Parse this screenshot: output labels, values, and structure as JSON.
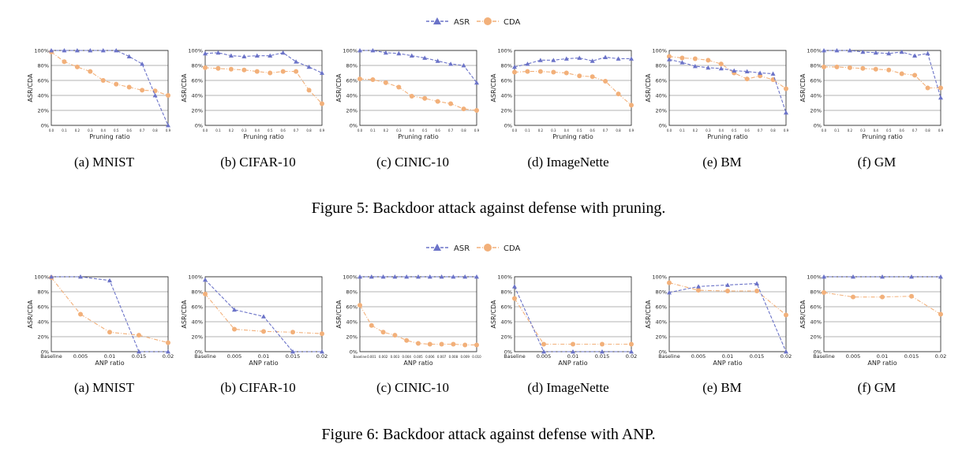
{
  "colors": {
    "asr": "#6b73c8",
    "cda": "#f2b07a",
    "grid": "#9a9a9a"
  },
  "legend": {
    "asr": "ASR",
    "cda": "CDA"
  },
  "figure5": {
    "caption": "Figure 5: Backdoor attack against defense with pruning.",
    "subcaptions": [
      "(a)  MNIST",
      "(b)  CIFAR-10",
      "(c)  CINIC-10",
      "(d)  ImageNette",
      "(e)  BM",
      "(f)  GM"
    ]
  },
  "figure6": {
    "caption": "Figure 6: Backdoor attack against defense with ANP.",
    "subcaptions": [
      "(a)  MNIST",
      "(b)  CIFAR-10",
      "(c)  CINIC-10",
      "(d)  ImageNette",
      "(e)  BM",
      "(f)  GM"
    ]
  },
  "chart_data": [
    {
      "type": "line",
      "panel": "(a) MNIST",
      "xlabel": "Pruning ratio",
      "ylabel": "ASR/CDA",
      "ylim": [
        0,
        100
      ],
      "yticks": [
        "0%",
        "20%",
        "40%",
        "60%",
        "80%",
        "100%"
      ],
      "x": [
        "0.0",
        "0.1",
        "0.2",
        "0.3",
        "0.4",
        "0.5",
        "0.6",
        "0.7",
        "0.8",
        "0.9"
      ],
      "series": [
        {
          "name": "ASR",
          "values": [
            100,
            100,
            100,
            100,
            100,
            100,
            92,
            82,
            40,
            0
          ]
        },
        {
          "name": "CDA",
          "values": [
            98,
            85,
            78,
            72,
            60,
            55,
            51,
            47,
            46,
            40
          ]
        }
      ]
    },
    {
      "type": "line",
      "panel": "(b) CIFAR-10",
      "xlabel": "Pruning ratio",
      "ylabel": "ASR/CDA",
      "ylim": [
        0,
        100
      ],
      "yticks": [
        "0%",
        "20%",
        "40%",
        "60%",
        "80%",
        "100%"
      ],
      "x": [
        "0.0",
        "0.1",
        "0.2",
        "0.3",
        "0.4",
        "0.5",
        "0.6",
        "0.7",
        "0.8",
        "0.9"
      ],
      "series": [
        {
          "name": "ASR",
          "values": [
            96,
            97,
            93,
            92,
            93,
            93,
            97,
            85,
            78,
            70
          ]
        },
        {
          "name": "CDA",
          "values": [
            77,
            76,
            75,
            74,
            72,
            70,
            72,
            72,
            47,
            29
          ]
        }
      ]
    },
    {
      "type": "line",
      "panel": "(c) CINIC-10",
      "xlabel": "Pruning ratio",
      "ylabel": "ASR/CDA",
      "ylim": [
        0,
        100
      ],
      "yticks": [
        "0%",
        "20%",
        "40%",
        "60%",
        "80%",
        "100%"
      ],
      "x": [
        "0.0",
        "0.1",
        "0.2",
        "0.3",
        "0.4",
        "0.5",
        "0.6",
        "0.7",
        "0.8",
        "0.9"
      ],
      "series": [
        {
          "name": "ASR",
          "values": [
            100,
            100,
            97,
            96,
            93,
            90,
            86,
            82,
            80,
            57
          ]
        },
        {
          "name": "CDA",
          "values": [
            62,
            61,
            57,
            51,
            39,
            36,
            32,
            29,
            22,
            20
          ]
        }
      ]
    },
    {
      "type": "line",
      "panel": "(d) ImageNette",
      "xlabel": "Pruning ratio",
      "ylabel": "ASR/CDA",
      "ylim": [
        0,
        100
      ],
      "yticks": [
        "0%",
        "20%",
        "40%",
        "60%",
        "80%",
        "100%"
      ],
      "x": [
        "0.0",
        "0.1",
        "0.2",
        "0.3",
        "0.4",
        "0.5",
        "0.6",
        "0.7",
        "0.8",
        "0.9"
      ],
      "series": [
        {
          "name": "ASR",
          "values": [
            78,
            82,
            87,
            87,
            89,
            90,
            86,
            91,
            89,
            89
          ]
        },
        {
          "name": "CDA",
          "values": [
            71,
            72,
            72,
            71,
            70,
            66,
            65,
            59,
            42,
            27
          ]
        }
      ]
    },
    {
      "type": "line",
      "panel": "(e) BM",
      "xlabel": "Pruning ratio",
      "ylabel": "ASR/CDA",
      "ylim": [
        0,
        100
      ],
      "yticks": [
        "0%",
        "20%",
        "40%",
        "60%",
        "80%",
        "100%"
      ],
      "x": [
        "0.0",
        "0.1",
        "0.2",
        "0.3",
        "0.4",
        "0.5",
        "0.6",
        "0.7",
        "0.8",
        "0.9"
      ],
      "series": [
        {
          "name": "ASR",
          "values": [
            88,
            84,
            79,
            77,
            76,
            73,
            72,
            70,
            69,
            17
          ]
        },
        {
          "name": "CDA",
          "values": [
            92,
            90,
            89,
            87,
            82,
            70,
            62,
            66,
            61,
            49
          ]
        }
      ]
    },
    {
      "type": "line",
      "panel": "(f) GM",
      "xlabel": "Pruning ratio",
      "ylabel": "ASR/CDA",
      "ylim": [
        0,
        100
      ],
      "yticks": [
        "0%",
        "20%",
        "40%",
        "60%",
        "80%",
        "100%"
      ],
      "x": [
        "0.0",
        "0.1",
        "0.2",
        "0.3",
        "0.4",
        "0.5",
        "0.6",
        "0.7",
        "0.8",
        "0.9"
      ],
      "series": [
        {
          "name": "ASR",
          "values": [
            100,
            100,
            100,
            98,
            97,
            96,
            98,
            93,
            96,
            37
          ]
        },
        {
          "name": "CDA",
          "values": [
            78,
            78,
            77,
            76,
            75,
            74,
            69,
            67,
            50,
            50
          ]
        }
      ]
    },
    {
      "type": "line",
      "panel": "(a) MNIST",
      "xlabel": "ANP ratio",
      "ylabel": "ASR/CDA",
      "ylim": [
        0,
        100
      ],
      "yticks": [
        "0%",
        "20%",
        "40%",
        "60%",
        "80%",
        "100%"
      ],
      "x": [
        "Baseline",
        "0.005",
        "0.01",
        "0.015",
        "0.02"
      ],
      "series": [
        {
          "name": "ASR",
          "values": [
            100,
            100,
            95,
            0,
            0
          ]
        },
        {
          "name": "CDA",
          "values": [
            99,
            50,
            26,
            22,
            12
          ]
        }
      ]
    },
    {
      "type": "line",
      "panel": "(b) CIFAR-10",
      "xlabel": "ANP ratio",
      "ylabel": "ASR/CDA",
      "ylim": [
        0,
        100
      ],
      "yticks": [
        "0%",
        "20%",
        "40%",
        "60%",
        "80%",
        "100%"
      ],
      "x": [
        "Baseline",
        "0.005",
        "0.01",
        "0.015",
        "0.02"
      ],
      "series": [
        {
          "name": "ASR",
          "values": [
            96,
            56,
            47,
            0,
            0
          ]
        },
        {
          "name": "CDA",
          "values": [
            77,
            30,
            27,
            26,
            24
          ]
        }
      ]
    },
    {
      "type": "line",
      "panel": "(c) CINIC-10",
      "xlabel": "ANP ratio",
      "ylabel": "ASR/CDA",
      "ylim": [
        0,
        100
      ],
      "yticks": [
        "0%",
        "20%",
        "40%",
        "60%",
        "80%",
        "100%"
      ],
      "x": [
        "Baseline",
        "0.001",
        "0.002",
        "0.003",
        "0.004",
        "0.005",
        "0.006",
        "0.007",
        "0.008",
        "0.009",
        "0.010"
      ],
      "series": [
        {
          "name": "ASR",
          "values": [
            100,
            100,
            100,
            100,
            100,
            100,
            100,
            100,
            100,
            100,
            100
          ]
        },
        {
          "name": "CDA",
          "values": [
            62,
            35,
            26,
            22,
            15,
            11,
            10,
            10,
            10,
            9,
            9
          ]
        }
      ]
    },
    {
      "type": "line",
      "panel": "(d) ImageNette",
      "xlabel": "ANP ratio",
      "ylabel": "ASR/CDA",
      "ylim": [
        0,
        100
      ],
      "yticks": [
        "0%",
        "20%",
        "40%",
        "60%",
        "80%",
        "100%"
      ],
      "x": [
        "Baseline",
        "0.005",
        "0.01",
        "0.015",
        "0.02"
      ],
      "series": [
        {
          "name": "ASR",
          "values": [
            87,
            0,
            0,
            0,
            0
          ]
        },
        {
          "name": "CDA",
          "values": [
            71,
            10,
            10,
            10,
            10
          ]
        }
      ]
    },
    {
      "type": "line",
      "panel": "(e) BM",
      "xlabel": "ANP ratio",
      "ylabel": "ASR/CDA",
      "ylim": [
        0,
        100
      ],
      "yticks": [
        "0%",
        "20%",
        "40%",
        "60%",
        "80%",
        "100%"
      ],
      "x": [
        "Baseline",
        "0.005",
        "0.01",
        "0.015",
        "0.02"
      ],
      "series": [
        {
          "name": "ASR",
          "values": [
            79,
            87,
            89,
            91,
            0
          ]
        },
        {
          "name": "CDA",
          "values": [
            92,
            82,
            81,
            81,
            49
          ]
        }
      ]
    },
    {
      "type": "line",
      "panel": "(f) GM",
      "xlabel": "ANP ratio",
      "ylabel": "ASR/CDA",
      "ylim": [
        0,
        100
      ],
      "yticks": [
        "0%",
        "20%",
        "40%",
        "60%",
        "80%",
        "100%"
      ],
      "x": [
        "Baseline",
        "0.005",
        "0.01",
        "0.015",
        "0.02"
      ],
      "series": [
        {
          "name": "ASR",
          "values": [
            100,
            100,
            100,
            100,
            100
          ]
        },
        {
          "name": "CDA",
          "values": [
            79,
            73,
            73,
            74,
            50
          ]
        }
      ]
    }
  ]
}
